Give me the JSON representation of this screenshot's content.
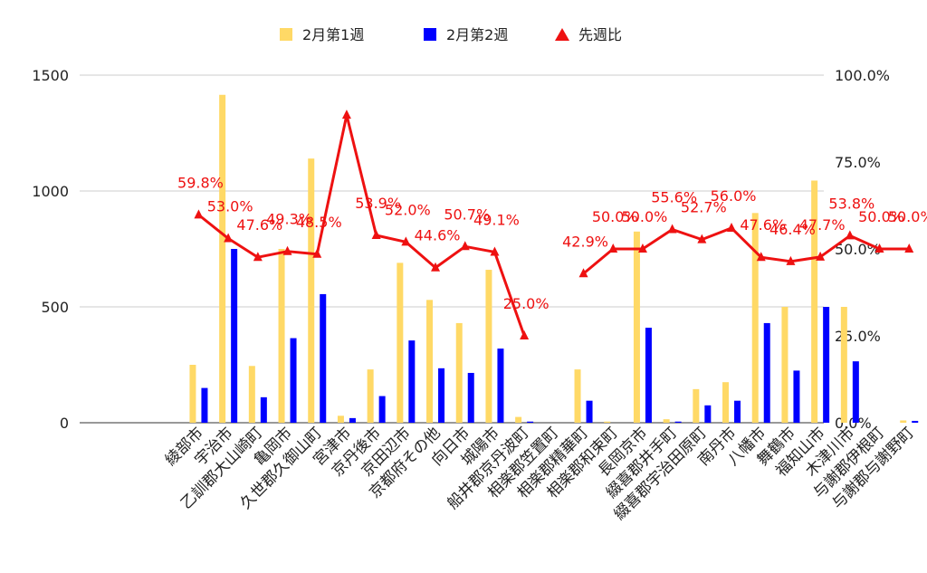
{
  "chart_data": {
    "type": "bar",
    "categories": [
      "綾部市",
      "宇治市",
      "乙訓郡大山崎町",
      "亀岡市",
      "久世郡久御山町",
      "宮津市",
      "京丹後市",
      "京田辺市",
      "京都府その他",
      "向日市",
      "城陽市",
      "船井郡京丹波町",
      "相楽郡笠置町",
      "相楽郡精華町",
      "相楽郡和束町",
      "長岡京市",
      "綴喜郡井手町",
      "綴喜郡宇治田原町",
      "南丹市",
      "八幡市",
      "舞鶴市",
      "福知山市",
      "木津川市",
      "与謝郡伊根町",
      "与謝郡与謝野町"
    ],
    "series": [
      {
        "name": "2月第1週",
        "type": "bar",
        "axis": "left",
        "color": "#FFD966",
        "values": [
          250,
          1415,
          245,
          750,
          1140,
          30,
          230,
          690,
          530,
          430,
          660,
          25,
          0,
          230,
          5,
          825,
          15,
          145,
          175,
          905,
          500,
          1045,
          500,
          0,
          10
        ]
      },
      {
        "name": "2月第2週",
        "type": "bar",
        "axis": "left",
        "color": "#0000FF",
        "values": [
          150,
          750,
          110,
          365,
          555,
          20,
          115,
          355,
          235,
          215,
          320,
          5,
          0,
          95,
          0,
          410,
          5,
          75,
          95,
          430,
          225,
          500,
          265,
          0,
          8
        ]
      },
      {
        "name": "先週比",
        "type": "line",
        "axis": "right",
        "color": "#EE1111",
        "values": [
          59.8,
          53.0,
          47.6,
          49.3,
          48.5,
          88.5,
          53.9,
          52.0,
          44.6,
          50.7,
          49.1,
          25.0,
          null,
          42.9,
          50.0,
          50.0,
          55.6,
          52.7,
          56.0,
          47.6,
          46.4,
          47.7,
          53.8,
          50.0,
          50.0
        ],
        "labels": [
          "59.8%",
          "53.0%",
          "47.6%",
          "49.3%",
          "48.5%",
          "",
          "53.9%",
          "52.0%",
          "44.6%",
          "50.7%",
          "49.1%",
          "25.0%",
          "",
          "42.9%",
          "50.0%",
          "50.0%",
          "55.6%",
          "52.7%",
          "56.0%",
          "47.6%",
          "46.4%",
          "47.7%",
          "53.8%",
          "50.0%",
          "50.0%"
        ]
      }
    ],
    "left_axis": {
      "ylim": [
        0,
        1500
      ],
      "ticks": [
        "0",
        "500",
        "1000",
        "1500"
      ]
    },
    "right_axis": {
      "ylim": [
        0,
        100
      ],
      "ticks": [
        "0.0%",
        "25.0%",
        "50.0%",
        "75.0%",
        "100.0%"
      ]
    },
    "grid": true,
    "legend_position": "top"
  }
}
